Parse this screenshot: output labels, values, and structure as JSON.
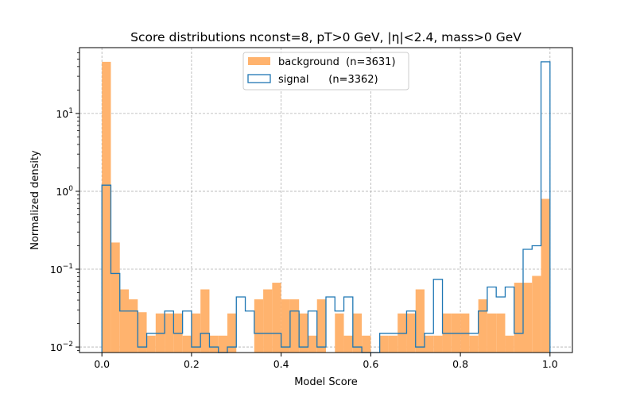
{
  "chart_data": {
    "type": "histogram",
    "title": "Score distributions nconst=8,  pT>0 GeV, |η|<2.4, mass>0 GeV",
    "xlabel": "Model Score",
    "ylabel": "Normalized density",
    "xlim": [
      -0.05,
      1.05
    ],
    "ylim": [
      0.0085,
      70
    ],
    "yscale": "log",
    "grid": true,
    "legend_position": "upper center",
    "bin_width": 0.02,
    "bin_start": 0.0,
    "x_ticks": [
      0.0,
      0.2,
      0.4,
      0.6,
      0.8,
      1.0
    ],
    "x_tick_labels": [
      "0.0",
      "0.2",
      "0.4",
      "0.6",
      "0.8",
      "1.0"
    ],
    "y_ticks": [
      0.01,
      0.1,
      1,
      10
    ],
    "y_tick_labels": [
      {
        "base": "10",
        "exp": "−2"
      },
      {
        "base": "10",
        "exp": "−1"
      },
      {
        "base": "10",
        "exp": "0"
      },
      {
        "base": "10",
        "exp": "1"
      }
    ],
    "series": [
      {
        "name": "background  (n=3631)",
        "style": "filled",
        "color": "#ffb36e",
        "values": [
          46,
          0.22,
          0.055,
          0.041,
          0.028,
          0.014,
          0.027,
          0.027,
          0.027,
          0.014,
          0.027,
          0.055,
          0.014,
          0.014,
          0.027,
          0,
          0,
          0.041,
          0.055,
          0.067,
          0.041,
          0.041,
          0.027,
          0.014,
          0.041,
          0,
          0.027,
          0.014,
          0.027,
          0.014,
          0,
          0.014,
          0.014,
          0.027,
          0.027,
          0.055,
          0.014,
          0.014,
          0.027,
          0.027,
          0.027,
          0.014,
          0.041,
          0.027,
          0.027,
          0.014,
          0.067,
          0.067,
          0.082,
          0.8
        ]
      },
      {
        "name": "signal      (n=3362)",
        "style": "step",
        "color": "#1f77b4",
        "values": [
          1.2,
          0.088,
          0.029,
          0.029,
          0.01,
          0.015,
          0.015,
          0.029,
          0.015,
          0.029,
          0.01,
          0.015,
          0.01,
          0,
          0.01,
          0.044,
          0.029,
          0.015,
          0.015,
          0.015,
          0.01,
          0.029,
          0.01,
          0.029,
          0.01,
          0.044,
          0.029,
          0.044,
          0.01,
          0,
          0,
          0.015,
          0.015,
          0.015,
          0.029,
          0.01,
          0.015,
          0.074,
          0.015,
          0.015,
          0.015,
          0.015,
          0.029,
          0.059,
          0.044,
          0.059,
          0.015,
          0.18,
          0.2,
          46
        ]
      }
    ]
  }
}
